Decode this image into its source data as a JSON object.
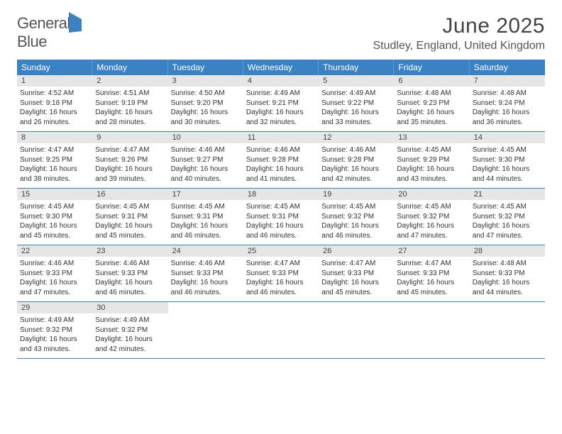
{
  "logo": {
    "word1": "General",
    "word2": "Blue"
  },
  "title": "June 2025",
  "location": "Studley, England, United Kingdom",
  "colors": {
    "accent": "#3b82c4",
    "daynum_bg": "#e6e6e6",
    "text": "#333333"
  },
  "day_headers": [
    "Sunday",
    "Monday",
    "Tuesday",
    "Wednesday",
    "Thursday",
    "Friday",
    "Saturday"
  ],
  "weeks": [
    [
      {
        "n": "1",
        "sunrise": "Sunrise: 4:52 AM",
        "sunset": "Sunset: 9:18 PM",
        "day1": "Daylight: 16 hours",
        "day2": "and 26 minutes."
      },
      {
        "n": "2",
        "sunrise": "Sunrise: 4:51 AM",
        "sunset": "Sunset: 9:19 PM",
        "day1": "Daylight: 16 hours",
        "day2": "and 28 minutes."
      },
      {
        "n": "3",
        "sunrise": "Sunrise: 4:50 AM",
        "sunset": "Sunset: 9:20 PM",
        "day1": "Daylight: 16 hours",
        "day2": "and 30 minutes."
      },
      {
        "n": "4",
        "sunrise": "Sunrise: 4:49 AM",
        "sunset": "Sunset: 9:21 PM",
        "day1": "Daylight: 16 hours",
        "day2": "and 32 minutes."
      },
      {
        "n": "5",
        "sunrise": "Sunrise: 4:49 AM",
        "sunset": "Sunset: 9:22 PM",
        "day1": "Daylight: 16 hours",
        "day2": "and 33 minutes."
      },
      {
        "n": "6",
        "sunrise": "Sunrise: 4:48 AM",
        "sunset": "Sunset: 9:23 PM",
        "day1": "Daylight: 16 hours",
        "day2": "and 35 minutes."
      },
      {
        "n": "7",
        "sunrise": "Sunrise: 4:48 AM",
        "sunset": "Sunset: 9:24 PM",
        "day1": "Daylight: 16 hours",
        "day2": "and 36 minutes."
      }
    ],
    [
      {
        "n": "8",
        "sunrise": "Sunrise: 4:47 AM",
        "sunset": "Sunset: 9:25 PM",
        "day1": "Daylight: 16 hours",
        "day2": "and 38 minutes."
      },
      {
        "n": "9",
        "sunrise": "Sunrise: 4:47 AM",
        "sunset": "Sunset: 9:26 PM",
        "day1": "Daylight: 16 hours",
        "day2": "and 39 minutes."
      },
      {
        "n": "10",
        "sunrise": "Sunrise: 4:46 AM",
        "sunset": "Sunset: 9:27 PM",
        "day1": "Daylight: 16 hours",
        "day2": "and 40 minutes."
      },
      {
        "n": "11",
        "sunrise": "Sunrise: 4:46 AM",
        "sunset": "Sunset: 9:28 PM",
        "day1": "Daylight: 16 hours",
        "day2": "and 41 minutes."
      },
      {
        "n": "12",
        "sunrise": "Sunrise: 4:46 AM",
        "sunset": "Sunset: 9:28 PM",
        "day1": "Daylight: 16 hours",
        "day2": "and 42 minutes."
      },
      {
        "n": "13",
        "sunrise": "Sunrise: 4:45 AM",
        "sunset": "Sunset: 9:29 PM",
        "day1": "Daylight: 16 hours",
        "day2": "and 43 minutes."
      },
      {
        "n": "14",
        "sunrise": "Sunrise: 4:45 AM",
        "sunset": "Sunset: 9:30 PM",
        "day1": "Daylight: 16 hours",
        "day2": "and 44 minutes."
      }
    ],
    [
      {
        "n": "15",
        "sunrise": "Sunrise: 4:45 AM",
        "sunset": "Sunset: 9:30 PM",
        "day1": "Daylight: 16 hours",
        "day2": "and 45 minutes."
      },
      {
        "n": "16",
        "sunrise": "Sunrise: 4:45 AM",
        "sunset": "Sunset: 9:31 PM",
        "day1": "Daylight: 16 hours",
        "day2": "and 45 minutes."
      },
      {
        "n": "17",
        "sunrise": "Sunrise: 4:45 AM",
        "sunset": "Sunset: 9:31 PM",
        "day1": "Daylight: 16 hours",
        "day2": "and 46 minutes."
      },
      {
        "n": "18",
        "sunrise": "Sunrise: 4:45 AM",
        "sunset": "Sunset: 9:31 PM",
        "day1": "Daylight: 16 hours",
        "day2": "and 46 minutes."
      },
      {
        "n": "19",
        "sunrise": "Sunrise: 4:45 AM",
        "sunset": "Sunset: 9:32 PM",
        "day1": "Daylight: 16 hours",
        "day2": "and 46 minutes."
      },
      {
        "n": "20",
        "sunrise": "Sunrise: 4:45 AM",
        "sunset": "Sunset: 9:32 PM",
        "day1": "Daylight: 16 hours",
        "day2": "and 47 minutes."
      },
      {
        "n": "21",
        "sunrise": "Sunrise: 4:45 AM",
        "sunset": "Sunset: 9:32 PM",
        "day1": "Daylight: 16 hours",
        "day2": "and 47 minutes."
      }
    ],
    [
      {
        "n": "22",
        "sunrise": "Sunrise: 4:46 AM",
        "sunset": "Sunset: 9:33 PM",
        "day1": "Daylight: 16 hours",
        "day2": "and 47 minutes."
      },
      {
        "n": "23",
        "sunrise": "Sunrise: 4:46 AM",
        "sunset": "Sunset: 9:33 PM",
        "day1": "Daylight: 16 hours",
        "day2": "and 46 minutes."
      },
      {
        "n": "24",
        "sunrise": "Sunrise: 4:46 AM",
        "sunset": "Sunset: 9:33 PM",
        "day1": "Daylight: 16 hours",
        "day2": "and 46 minutes."
      },
      {
        "n": "25",
        "sunrise": "Sunrise: 4:47 AM",
        "sunset": "Sunset: 9:33 PM",
        "day1": "Daylight: 16 hours",
        "day2": "and 46 minutes."
      },
      {
        "n": "26",
        "sunrise": "Sunrise: 4:47 AM",
        "sunset": "Sunset: 9:33 PM",
        "day1": "Daylight: 16 hours",
        "day2": "and 45 minutes."
      },
      {
        "n": "27",
        "sunrise": "Sunrise: 4:47 AM",
        "sunset": "Sunset: 9:33 PM",
        "day1": "Daylight: 16 hours",
        "day2": "and 45 minutes."
      },
      {
        "n": "28",
        "sunrise": "Sunrise: 4:48 AM",
        "sunset": "Sunset: 9:33 PM",
        "day1": "Daylight: 16 hours",
        "day2": "and 44 minutes."
      }
    ],
    [
      {
        "n": "29",
        "sunrise": "Sunrise: 4:49 AM",
        "sunset": "Sunset: 9:32 PM",
        "day1": "Daylight: 16 hours",
        "day2": "and 43 minutes."
      },
      {
        "n": "30",
        "sunrise": "Sunrise: 4:49 AM",
        "sunset": "Sunset: 9:32 PM",
        "day1": "Daylight: 16 hours",
        "day2": "and 42 minutes."
      },
      null,
      null,
      null,
      null,
      null
    ]
  ]
}
